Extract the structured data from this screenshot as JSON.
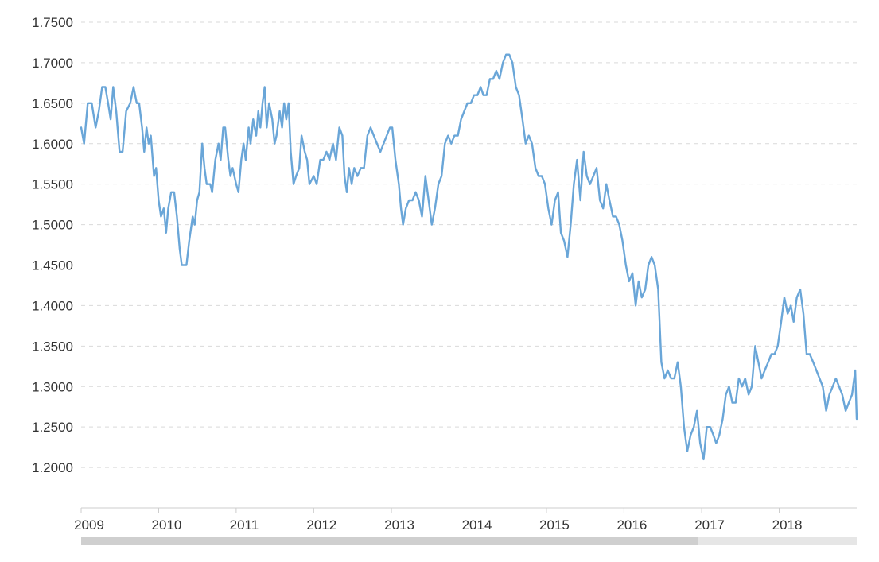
{
  "colors": {
    "series": "#6aa6d8",
    "grid": "#d9d9d9",
    "axis_line": "#cccccc",
    "text": "#333333",
    "scrollbar_track": "#e6e6e6",
    "scrollbar_thumb": "#cfcfcf"
  },
  "chart_data": {
    "type": "line",
    "title": "",
    "xlabel": "",
    "ylabel": "",
    "ylim": [
      1.15,
      1.75
    ],
    "xlim": [
      "2009-01-01",
      "2019-01-01"
    ],
    "grid": true,
    "y_ticks": [
      "1.2000",
      "1.2500",
      "1.3000",
      "1.3500",
      "1.4000",
      "1.4500",
      "1.5000",
      "1.5500",
      "1.6000",
      "1.6500",
      "1.7000",
      "1.7500"
    ],
    "x_ticks": [
      "2009",
      "2010",
      "2011",
      "2012",
      "2013",
      "2014",
      "2015",
      "2016",
      "2017",
      "2018"
    ],
    "series": [
      {
        "points": [
          [
            "2009-01-01",
            1.62
          ],
          [
            "2009-01-15",
            1.6
          ],
          [
            "2009-02-01",
            1.65
          ],
          [
            "2009-02-20",
            1.65
          ],
          [
            "2009-03-10",
            1.62
          ],
          [
            "2009-03-25",
            1.64
          ],
          [
            "2009-04-10",
            1.67
          ],
          [
            "2009-04-25",
            1.67
          ],
          [
            "2009-05-08",
            1.65
          ],
          [
            "2009-05-20",
            1.63
          ],
          [
            "2009-06-01",
            1.67
          ],
          [
            "2009-06-15",
            1.64
          ],
          [
            "2009-07-01",
            1.59
          ],
          [
            "2009-07-15",
            1.59
          ],
          [
            "2009-08-01",
            1.64
          ],
          [
            "2009-08-20",
            1.65
          ],
          [
            "2009-09-05",
            1.67
          ],
          [
            "2009-09-20",
            1.65
          ],
          [
            "2009-10-01",
            1.65
          ],
          [
            "2009-10-15",
            1.62
          ],
          [
            "2009-10-25",
            1.59
          ],
          [
            "2009-11-05",
            1.62
          ],
          [
            "2009-11-15",
            1.6
          ],
          [
            "2009-11-25",
            1.61
          ],
          [
            "2009-12-10",
            1.56
          ],
          [
            "2009-12-20",
            1.57
          ],
          [
            "2010-01-01",
            1.53
          ],
          [
            "2010-01-12",
            1.51
          ],
          [
            "2010-01-25",
            1.52
          ],
          [
            "2010-02-05",
            1.49
          ],
          [
            "2010-02-15",
            1.52
          ],
          [
            "2010-03-01",
            1.54
          ],
          [
            "2010-03-15",
            1.54
          ],
          [
            "2010-03-28",
            1.51
          ],
          [
            "2010-04-10",
            1.47
          ],
          [
            "2010-04-20",
            1.45
          ],
          [
            "2010-05-01",
            1.45
          ],
          [
            "2010-05-12",
            1.45
          ],
          [
            "2010-05-25",
            1.48
          ],
          [
            "2010-06-10",
            1.51
          ],
          [
            "2010-06-20",
            1.5
          ],
          [
            "2010-07-01",
            1.53
          ],
          [
            "2010-07-12",
            1.54
          ],
          [
            "2010-07-25",
            1.6
          ],
          [
            "2010-08-05",
            1.57
          ],
          [
            "2010-08-15",
            1.55
          ],
          [
            "2010-09-01",
            1.55
          ],
          [
            "2010-09-10",
            1.54
          ],
          [
            "2010-09-25",
            1.58
          ],
          [
            "2010-10-10",
            1.6
          ],
          [
            "2010-10-20",
            1.58
          ],
          [
            "2010-11-01",
            1.62
          ],
          [
            "2010-11-10",
            1.62
          ],
          [
            "2010-11-25",
            1.58
          ],
          [
            "2010-12-05",
            1.56
          ],
          [
            "2010-12-15",
            1.57
          ],
          [
            "2011-01-01",
            1.55
          ],
          [
            "2011-01-12",
            1.54
          ],
          [
            "2011-01-25",
            1.58
          ],
          [
            "2011-02-05",
            1.6
          ],
          [
            "2011-02-15",
            1.58
          ],
          [
            "2011-03-01",
            1.62
          ],
          [
            "2011-03-10",
            1.6
          ],
          [
            "2011-03-22",
            1.63
          ],
          [
            "2011-04-05",
            1.61
          ],
          [
            "2011-04-15",
            1.64
          ],
          [
            "2011-04-25",
            1.62
          ],
          [
            "2011-05-05",
            1.65
          ],
          [
            "2011-05-15",
            1.67
          ],
          [
            "2011-05-25",
            1.62
          ],
          [
            "2011-06-05",
            1.65
          ],
          [
            "2011-06-20",
            1.63
          ],
          [
            "2011-07-01",
            1.6
          ],
          [
            "2011-07-10",
            1.61
          ],
          [
            "2011-07-25",
            1.64
          ],
          [
            "2011-08-05",
            1.62
          ],
          [
            "2011-08-15",
            1.65
          ],
          [
            "2011-08-25",
            1.63
          ],
          [
            "2011-09-05",
            1.65
          ],
          [
            "2011-09-15",
            1.59
          ],
          [
            "2011-09-28",
            1.55
          ],
          [
            "2011-10-10",
            1.56
          ],
          [
            "2011-10-25",
            1.57
          ],
          [
            "2011-11-05",
            1.61
          ],
          [
            "2011-11-20",
            1.59
          ],
          [
            "2011-12-01",
            1.58
          ],
          [
            "2011-12-12",
            1.55
          ],
          [
            "2012-01-01",
            1.56
          ],
          [
            "2012-01-15",
            1.55
          ],
          [
            "2012-02-01",
            1.58
          ],
          [
            "2012-02-15",
            1.58
          ],
          [
            "2012-03-01",
            1.59
          ],
          [
            "2012-03-15",
            1.58
          ],
          [
            "2012-04-01",
            1.6
          ],
          [
            "2012-04-15",
            1.58
          ],
          [
            "2012-05-01",
            1.62
          ],
          [
            "2012-05-15",
            1.61
          ],
          [
            "2012-05-25",
            1.56
          ],
          [
            "2012-06-05",
            1.54
          ],
          [
            "2012-06-15",
            1.57
          ],
          [
            "2012-06-28",
            1.55
          ],
          [
            "2012-07-10",
            1.57
          ],
          [
            "2012-07-25",
            1.56
          ],
          [
            "2012-08-10",
            1.57
          ],
          [
            "2012-08-25",
            1.57
          ],
          [
            "2012-09-10",
            1.61
          ],
          [
            "2012-09-25",
            1.62
          ],
          [
            "2012-10-10",
            1.61
          ],
          [
            "2012-10-25",
            1.6
          ],
          [
            "2012-11-10",
            1.59
          ],
          [
            "2012-11-25",
            1.6
          ],
          [
            "2012-12-10",
            1.61
          ],
          [
            "2012-12-25",
            1.62
          ],
          [
            "2013-01-05",
            1.62
          ],
          [
            "2013-01-20",
            1.58
          ],
          [
            "2013-02-05",
            1.55
          ],
          [
            "2013-02-15",
            1.52
          ],
          [
            "2013-02-25",
            1.5
          ],
          [
            "2013-03-10",
            1.52
          ],
          [
            "2013-03-25",
            1.53
          ],
          [
            "2013-04-10",
            1.53
          ],
          [
            "2013-04-25",
            1.54
          ],
          [
            "2013-05-10",
            1.53
          ],
          [
            "2013-05-25",
            1.51
          ],
          [
            "2013-06-10",
            1.56
          ],
          [
            "2013-06-25",
            1.53
          ],
          [
            "2013-07-10",
            1.5
          ],
          [
            "2013-07-25",
            1.52
          ],
          [
            "2013-08-10",
            1.55
          ],
          [
            "2013-08-25",
            1.56
          ],
          [
            "2013-09-10",
            1.6
          ],
          [
            "2013-09-25",
            1.61
          ],
          [
            "2013-10-10",
            1.6
          ],
          [
            "2013-10-25",
            1.61
          ],
          [
            "2013-11-10",
            1.61
          ],
          [
            "2013-11-25",
            1.63
          ],
          [
            "2013-12-10",
            1.64
          ],
          [
            "2013-12-25",
            1.65
          ],
          [
            "2014-01-10",
            1.65
          ],
          [
            "2014-01-25",
            1.66
          ],
          [
            "2014-02-10",
            1.66
          ],
          [
            "2014-02-25",
            1.67
          ],
          [
            "2014-03-10",
            1.66
          ],
          [
            "2014-03-25",
            1.66
          ],
          [
            "2014-04-10",
            1.68
          ],
          [
            "2014-04-25",
            1.68
          ],
          [
            "2014-05-10",
            1.69
          ],
          [
            "2014-05-25",
            1.68
          ],
          [
            "2014-06-10",
            1.7
          ],
          [
            "2014-06-25",
            1.71
          ],
          [
            "2014-07-10",
            1.71
          ],
          [
            "2014-07-25",
            1.7
          ],
          [
            "2014-08-10",
            1.67
          ],
          [
            "2014-08-25",
            1.66
          ],
          [
            "2014-09-10",
            1.63
          ],
          [
            "2014-09-25",
            1.6
          ],
          [
            "2014-10-10",
            1.61
          ],
          [
            "2014-10-25",
            1.6
          ],
          [
            "2014-11-10",
            1.57
          ],
          [
            "2014-11-25",
            1.56
          ],
          [
            "2014-12-10",
            1.56
          ],
          [
            "2014-12-25",
            1.55
          ],
          [
            "2015-01-10",
            1.52
          ],
          [
            "2015-01-25",
            1.5
          ],
          [
            "2015-02-10",
            1.53
          ],
          [
            "2015-02-25",
            1.54
          ],
          [
            "2015-03-10",
            1.49
          ],
          [
            "2015-03-25",
            1.48
          ],
          [
            "2015-04-10",
            1.46
          ],
          [
            "2015-04-25",
            1.5
          ],
          [
            "2015-05-10",
            1.55
          ],
          [
            "2015-05-25",
            1.58
          ],
          [
            "2015-06-10",
            1.53
          ],
          [
            "2015-06-25",
            1.59
          ],
          [
            "2015-07-10",
            1.56
          ],
          [
            "2015-07-25",
            1.55
          ],
          [
            "2015-08-10",
            1.56
          ],
          [
            "2015-08-25",
            1.57
          ],
          [
            "2015-09-10",
            1.53
          ],
          [
            "2015-09-25",
            1.52
          ],
          [
            "2015-10-10",
            1.55
          ],
          [
            "2015-10-25",
            1.53
          ],
          [
            "2015-11-10",
            1.51
          ],
          [
            "2015-11-25",
            1.51
          ],
          [
            "2015-12-10",
            1.5
          ],
          [
            "2015-12-25",
            1.48
          ],
          [
            "2016-01-10",
            1.45
          ],
          [
            "2016-01-25",
            1.43
          ],
          [
            "2016-02-10",
            1.44
          ],
          [
            "2016-02-25",
            1.4
          ],
          [
            "2016-03-10",
            1.43
          ],
          [
            "2016-03-25",
            1.41
          ],
          [
            "2016-04-10",
            1.42
          ],
          [
            "2016-04-25",
            1.45
          ],
          [
            "2016-05-10",
            1.46
          ],
          [
            "2016-05-25",
            1.45
          ],
          [
            "2016-06-10",
            1.42
          ],
          [
            "2016-06-25",
            1.33
          ],
          [
            "2016-07-10",
            1.31
          ],
          [
            "2016-07-25",
            1.32
          ],
          [
            "2016-08-10",
            1.31
          ],
          [
            "2016-08-25",
            1.31
          ],
          [
            "2016-09-10",
            1.33
          ],
          [
            "2016-09-25",
            1.3
          ],
          [
            "2016-10-10",
            1.25
          ],
          [
            "2016-10-25",
            1.22
          ],
          [
            "2016-11-10",
            1.24
          ],
          [
            "2016-11-25",
            1.25
          ],
          [
            "2016-12-10",
            1.27
          ],
          [
            "2016-12-25",
            1.23
          ],
          [
            "2017-01-10",
            1.21
          ],
          [
            "2017-01-25",
            1.25
          ],
          [
            "2017-02-10",
            1.25
          ],
          [
            "2017-02-25",
            1.24
          ],
          [
            "2017-03-10",
            1.23
          ],
          [
            "2017-03-25",
            1.24
          ],
          [
            "2017-04-10",
            1.26
          ],
          [
            "2017-04-25",
            1.29
          ],
          [
            "2017-05-10",
            1.3
          ],
          [
            "2017-05-25",
            1.28
          ],
          [
            "2017-06-10",
            1.28
          ],
          [
            "2017-06-25",
            1.31
          ],
          [
            "2017-07-10",
            1.3
          ],
          [
            "2017-07-25",
            1.31
          ],
          [
            "2017-08-10",
            1.29
          ],
          [
            "2017-08-25",
            1.3
          ],
          [
            "2017-09-10",
            1.35
          ],
          [
            "2017-09-25",
            1.33
          ],
          [
            "2017-10-10",
            1.31
          ],
          [
            "2017-10-25",
            1.32
          ],
          [
            "2017-11-10",
            1.33
          ],
          [
            "2017-11-25",
            1.34
          ],
          [
            "2017-12-10",
            1.34
          ],
          [
            "2017-12-25",
            1.35
          ],
          [
            "2018-01-10",
            1.38
          ],
          [
            "2018-01-25",
            1.41
          ],
          [
            "2018-02-10",
            1.39
          ],
          [
            "2018-02-25",
            1.4
          ],
          [
            "2018-03-10",
            1.38
          ],
          [
            "2018-03-25",
            1.41
          ],
          [
            "2018-04-10",
            1.42
          ],
          [
            "2018-04-25",
            1.39
          ],
          [
            "2018-05-10",
            1.34
          ],
          [
            "2018-05-25",
            1.34
          ],
          [
            "2018-06-10",
            1.33
          ],
          [
            "2018-06-25",
            1.32
          ],
          [
            "2018-07-10",
            1.31
          ],
          [
            "2018-07-25",
            1.3
          ],
          [
            "2018-08-10",
            1.27
          ],
          [
            "2018-08-25",
            1.29
          ],
          [
            "2018-09-10",
            1.3
          ],
          [
            "2018-09-25",
            1.31
          ],
          [
            "2018-10-10",
            1.3
          ],
          [
            "2018-10-25",
            1.29
          ],
          [
            "2018-11-10",
            1.27
          ],
          [
            "2018-11-25",
            1.28
          ],
          [
            "2018-12-10",
            1.29
          ],
          [
            "2018-12-25",
            1.32
          ],
          [
            "2019-01-01",
            1.26
          ]
        ]
      }
    ]
  }
}
